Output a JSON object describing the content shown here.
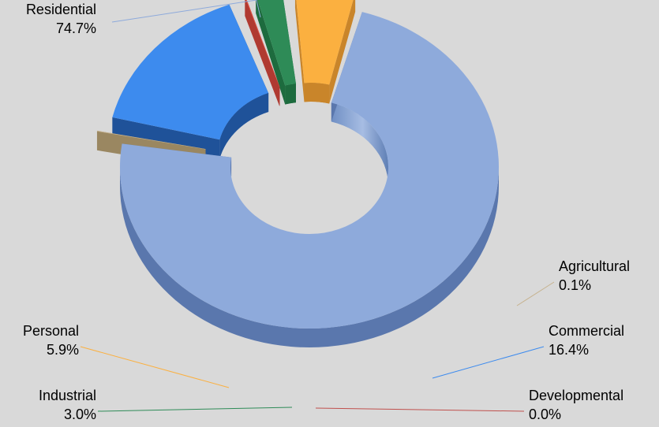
{
  "chart_data": {
    "type": "pie",
    "variant": "3d-exploded-doughnut",
    "series": [
      {
        "name": "Residential",
        "value": 74.7,
        "label": "74.7%",
        "color": "#8eaadb",
        "side_color": "#5a77ad",
        "leader_color": "#8eaadb"
      },
      {
        "name": "Agricultural",
        "value": 0.1,
        "label": "0.1%",
        "color": "#c6b28e",
        "side_color": "#9a8761",
        "leader_color": "#c6b28e"
      },
      {
        "name": "Commercial",
        "value": 16.4,
        "label": "16.4%",
        "color": "#3d8bee",
        "side_color": "#1f5299",
        "leader_color": "#3d8bee"
      },
      {
        "name": "Developmental",
        "value": 0.0,
        "label": "0.0%",
        "color": "#e65447",
        "side_color": "#b03a31",
        "leader_color": "#c0504d"
      },
      {
        "name": "Industrial",
        "value": 3.0,
        "label": "3.0%",
        "color": "#2e8b57",
        "side_color": "#1d6b3e",
        "leader_color": "#2e8b57"
      },
      {
        "name": "Personal",
        "value": 5.9,
        "label": "5.9%",
        "color": "#fbb040",
        "side_color": "#c9852a",
        "leader_color": "#fbb040"
      }
    ],
    "legend": false
  }
}
